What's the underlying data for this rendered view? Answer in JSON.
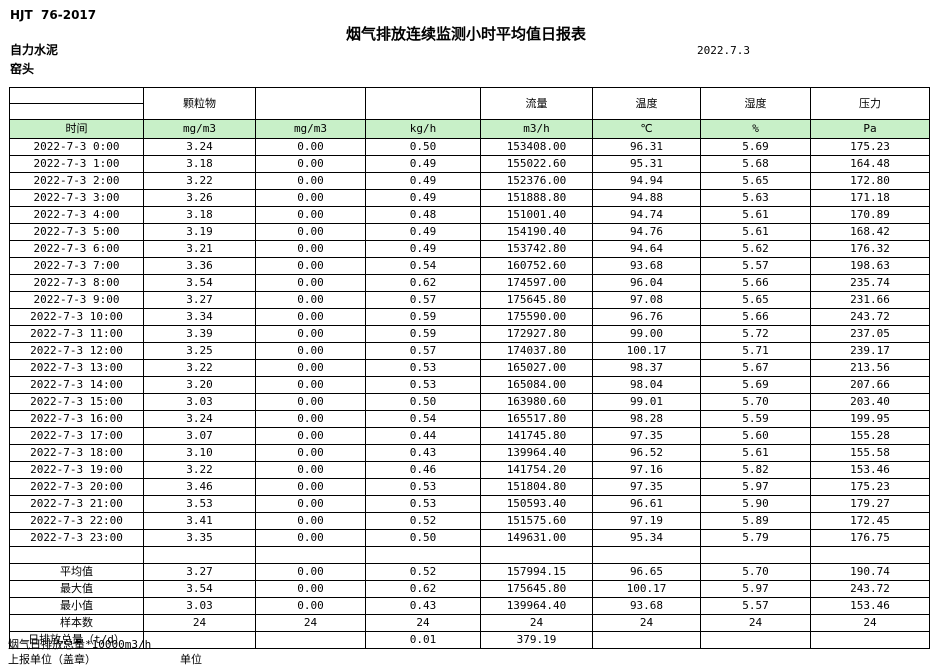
{
  "meta": {
    "standard": "HJT  76-2017",
    "title": "烟气排放连续监测小时平均值日报表",
    "company": "自力水泥",
    "station": "窑头",
    "date": "2022.7.3"
  },
  "colors": {
    "header_green": "#c8f0c8",
    "border": "#000000"
  },
  "table": {
    "group_headers": [
      "",
      "颗粒物",
      "",
      "",
      "流量",
      "温度",
      "湿度",
      "压力"
    ],
    "unit_row": [
      "时间",
      "mg/m3",
      "mg/m3",
      "kg/h",
      "m3/h",
      "℃",
      "%",
      "Pa"
    ],
    "rows": [
      [
        "2022-7-3 0:00",
        "3.24",
        "0.00",
        "0.50",
        "153408.00",
        "96.31",
        "5.69",
        "175.23"
      ],
      [
        "2022-7-3 1:00",
        "3.18",
        "0.00",
        "0.49",
        "155022.60",
        "95.31",
        "5.68",
        "164.48"
      ],
      [
        "2022-7-3 2:00",
        "3.22",
        "0.00",
        "0.49",
        "152376.00",
        "94.94",
        "5.65",
        "172.80"
      ],
      [
        "2022-7-3 3:00",
        "3.26",
        "0.00",
        "0.49",
        "151888.80",
        "94.88",
        "5.63",
        "171.18"
      ],
      [
        "2022-7-3 4:00",
        "3.18",
        "0.00",
        "0.48",
        "151001.40",
        "94.74",
        "5.61",
        "170.89"
      ],
      [
        "2022-7-3 5:00",
        "3.19",
        "0.00",
        "0.49",
        "154190.40",
        "94.76",
        "5.61",
        "168.42"
      ],
      [
        "2022-7-3 6:00",
        "3.21",
        "0.00",
        "0.49",
        "153742.80",
        "94.64",
        "5.62",
        "176.32"
      ],
      [
        "2022-7-3 7:00",
        "3.36",
        "0.00",
        "0.54",
        "160752.60",
        "93.68",
        "5.57",
        "198.63"
      ],
      [
        "2022-7-3 8:00",
        "3.54",
        "0.00",
        "0.62",
        "174597.00",
        "96.04",
        "5.66",
        "235.74"
      ],
      [
        "2022-7-3 9:00",
        "3.27",
        "0.00",
        "0.57",
        "175645.80",
        "97.08",
        "5.65",
        "231.66"
      ],
      [
        "2022-7-3 10:00",
        "3.34",
        "0.00",
        "0.59",
        "175590.00",
        "96.76",
        "5.66",
        "243.72"
      ],
      [
        "2022-7-3 11:00",
        "3.39",
        "0.00",
        "0.59",
        "172927.80",
        "99.00",
        "5.72",
        "237.05"
      ],
      [
        "2022-7-3 12:00",
        "3.25",
        "0.00",
        "0.57",
        "174037.80",
        "100.17",
        "5.71",
        "239.17"
      ],
      [
        "2022-7-3 13:00",
        "3.22",
        "0.00",
        "0.53",
        "165027.00",
        "98.37",
        "5.67",
        "213.56"
      ],
      [
        "2022-7-3 14:00",
        "3.20",
        "0.00",
        "0.53",
        "165084.00",
        "98.04",
        "5.69",
        "207.66"
      ],
      [
        "2022-7-3 15:00",
        "3.03",
        "0.00",
        "0.50",
        "163980.60",
        "99.01",
        "5.70",
        "203.40"
      ],
      [
        "2022-7-3 16:00",
        "3.24",
        "0.00",
        "0.54",
        "165517.80",
        "98.28",
        "5.59",
        "199.95"
      ],
      [
        "2022-7-3 17:00",
        "3.07",
        "0.00",
        "0.44",
        "141745.80",
        "97.35",
        "5.60",
        "155.28"
      ],
      [
        "2022-7-3 18:00",
        "3.10",
        "0.00",
        "0.43",
        "139964.40",
        "96.52",
        "5.61",
        "155.58"
      ],
      [
        "2022-7-3 19:00",
        "3.22",
        "0.00",
        "0.46",
        "141754.20",
        "97.16",
        "5.82",
        "153.46"
      ],
      [
        "2022-7-3 20:00",
        "3.46",
        "0.00",
        "0.53",
        "151804.80",
        "97.35",
        "5.97",
        "175.23"
      ],
      [
        "2022-7-3 21:00",
        "3.53",
        "0.00",
        "0.53",
        "150593.40",
        "96.61",
        "5.90",
        "179.27"
      ],
      [
        "2022-7-3 22:00",
        "3.41",
        "0.00",
        "0.52",
        "151575.60",
        "97.19",
        "5.89",
        "172.45"
      ],
      [
        "2022-7-3 23:00",
        "3.35",
        "0.00",
        "0.50",
        "149631.00",
        "95.34",
        "5.79",
        "176.75"
      ]
    ],
    "summary": [
      {
        "label": "平均值",
        "values": [
          "3.27",
          "0.00",
          "0.52",
          "157994.15",
          "96.65",
          "5.70",
          "190.74"
        ]
      },
      {
        "label": "最大值",
        "values": [
          "3.54",
          "0.00",
          "0.62",
          "175645.80",
          "100.17",
          "5.97",
          "243.72"
        ]
      },
      {
        "label": "最小值",
        "values": [
          "3.03",
          "0.00",
          "0.43",
          "139964.40",
          "93.68",
          "5.57",
          "153.46"
        ]
      },
      {
        "label": "样本数",
        "values": [
          "24",
          "24",
          "24",
          "24",
          "24",
          "24",
          "24"
        ]
      },
      {
        "label": "日排放总量（t/d）",
        "values": [
          "",
          "",
          "0.01",
          "379.19",
          "",
          "",
          ""
        ]
      }
    ]
  },
  "footer": {
    "note": "烟气日排放总量*10000m3/h",
    "report_unit": "上报单位（盖章）",
    "unit_label": "单位"
  }
}
